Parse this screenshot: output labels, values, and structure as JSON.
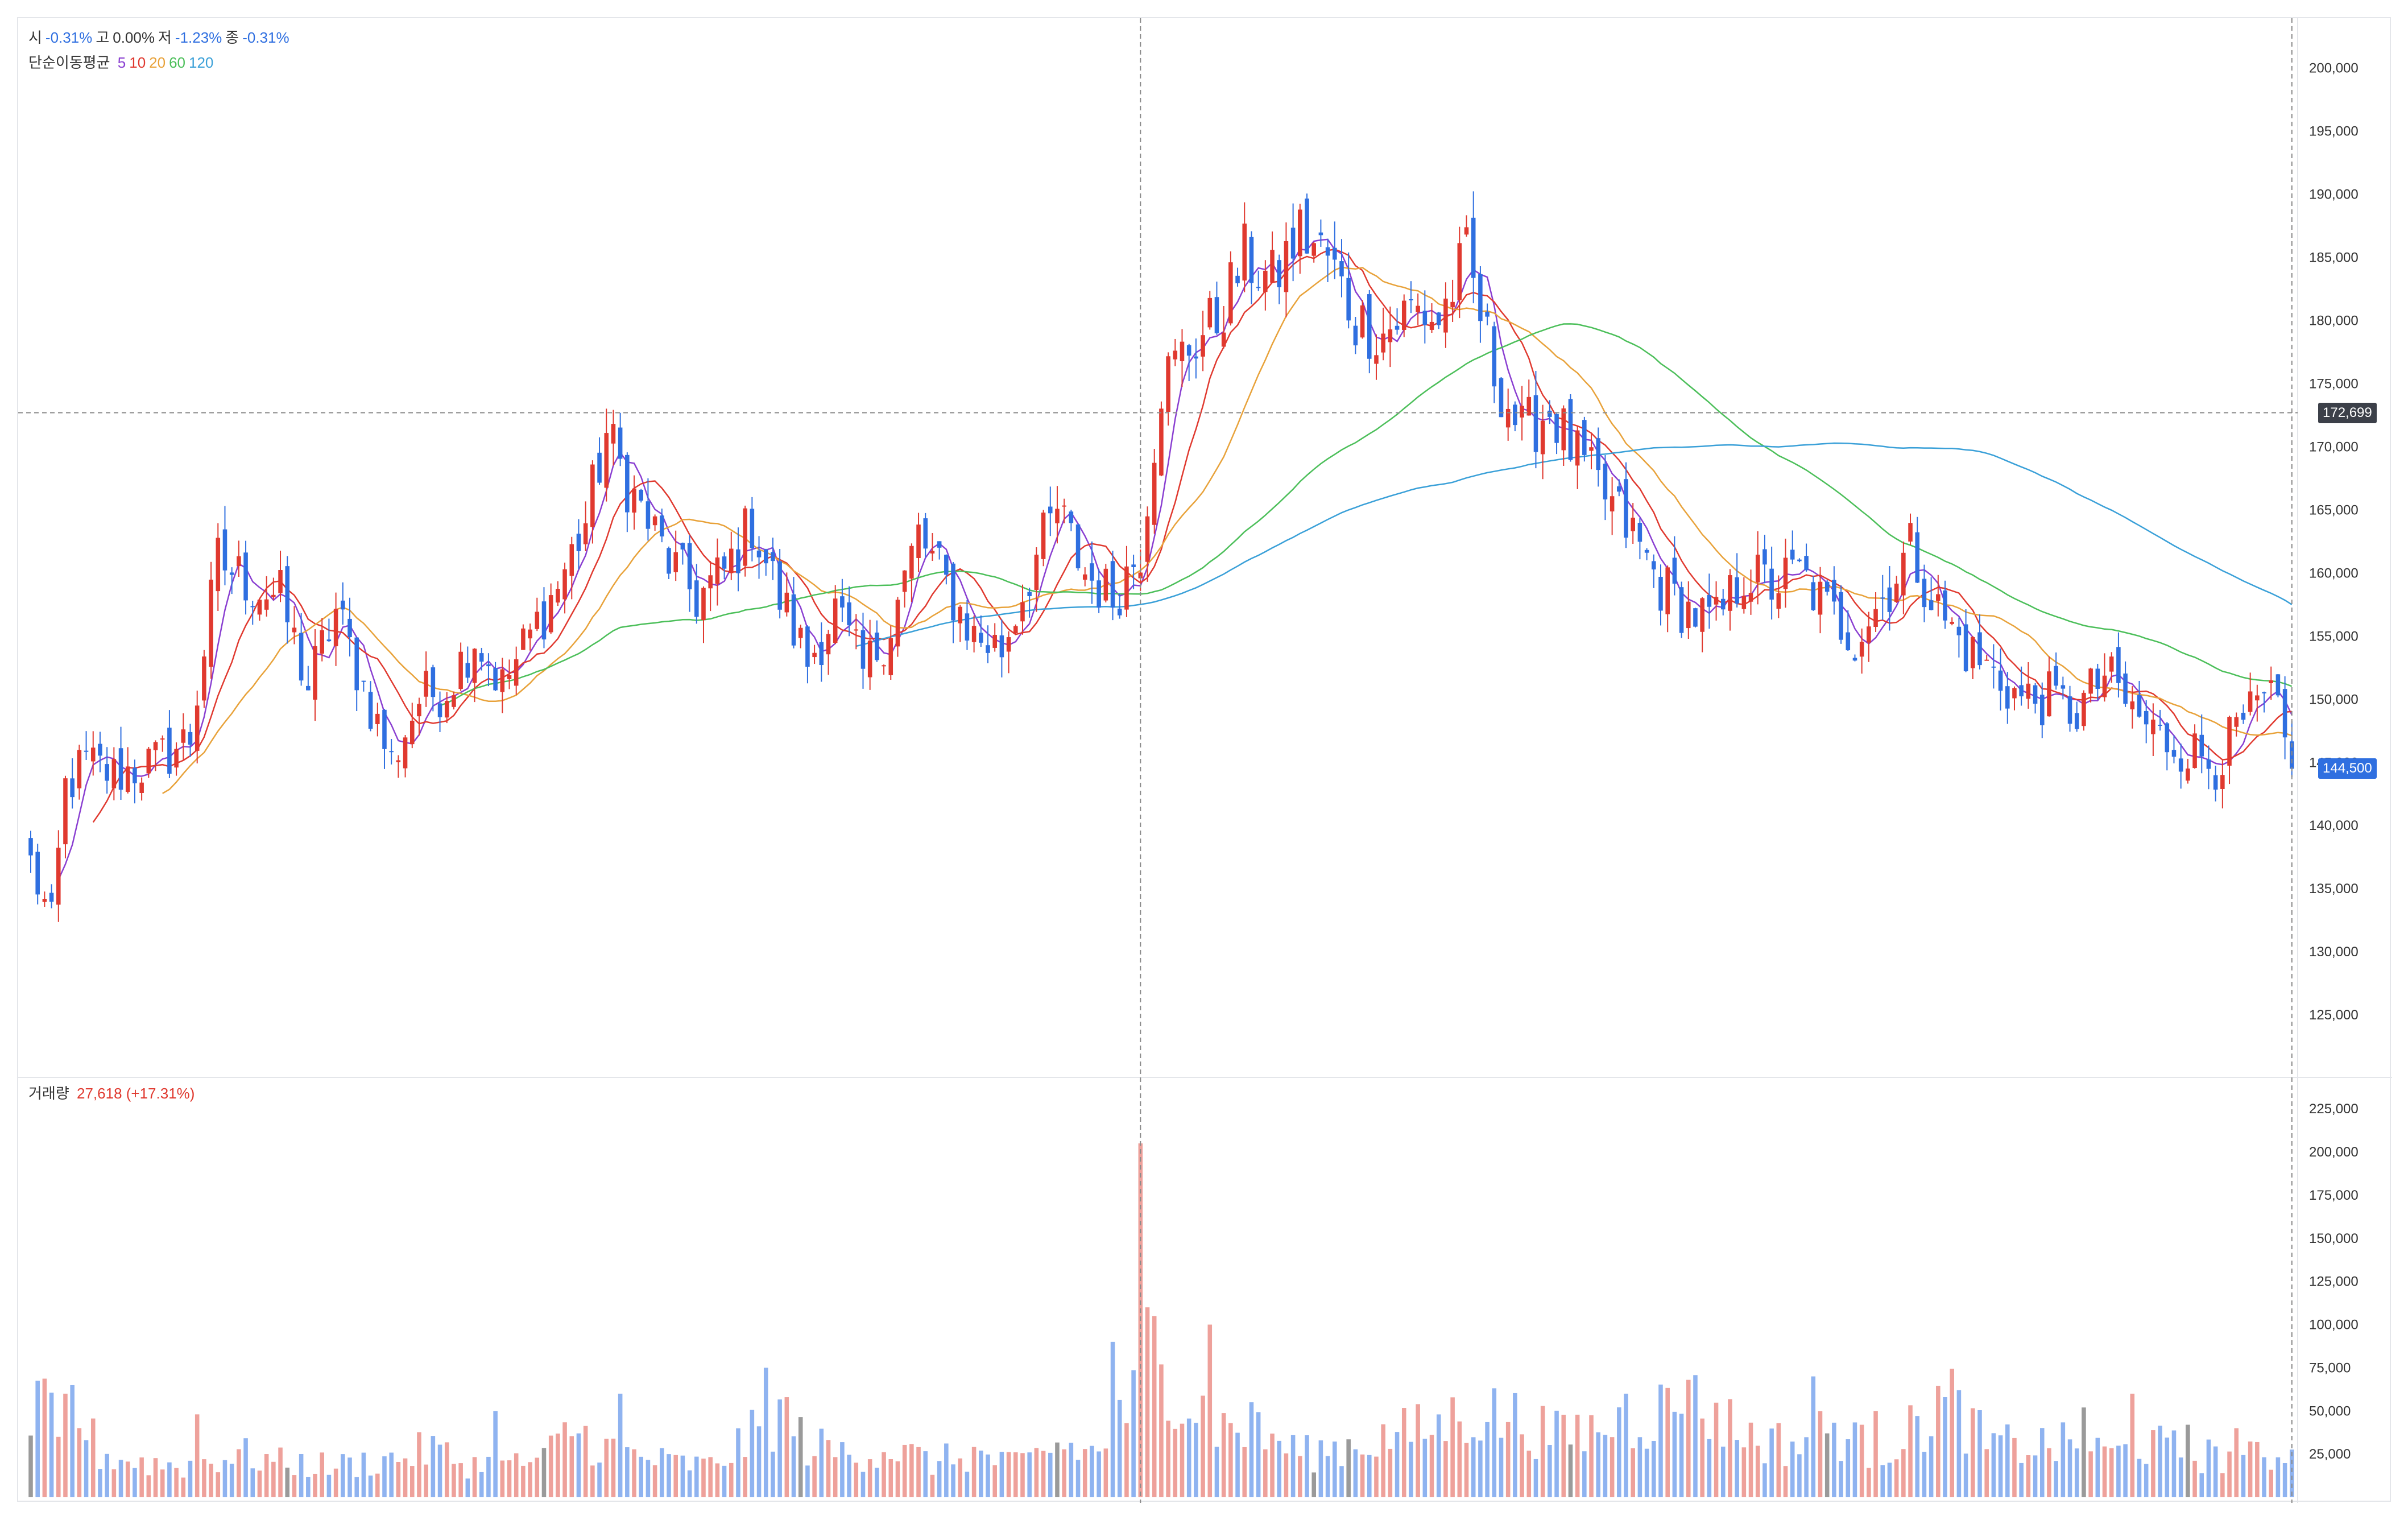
{
  "legend": {
    "ohlc": [
      {
        "label": "시",
        "value": "-0.31%",
        "tone": "neg"
      },
      {
        "label": "고",
        "value": "0.00%",
        "tone": "neu"
      },
      {
        "label": "저",
        "value": "-1.23%",
        "tone": "neg"
      },
      {
        "label": "종",
        "value": "-0.31%",
        "tone": "neg"
      }
    ],
    "ma_title": "단순이동평균",
    "ma_periods": [
      {
        "label": "5",
        "color": "#8a3fd1"
      },
      {
        "label": "10",
        "color": "#e0392f"
      },
      {
        "label": "20",
        "color": "#e8a23a"
      },
      {
        "label": "60",
        "color": "#4cbf5a"
      },
      {
        "label": "120",
        "color": "#3aa0d8"
      }
    ],
    "volume_title": "거래량",
    "volume_value": "27,618 (+17.31%)"
  },
  "crosshair_label": "172,699",
  "last_price_label": "144,500",
  "colors": {
    "up": "#e0392f",
    "down": "#2f6fe0",
    "up_vol": "#eea19b",
    "down_vol": "#8fb3f0",
    "neutral_vol": "#9a9a9a"
  },
  "chart_data": {
    "type": "candlestick",
    "price_ticks": [
      "200,000",
      "195,000",
      "190,000",
      "185,000",
      "180,000",
      "175,000",
      "170,000",
      "165,000",
      "160,000",
      "155,000",
      "150,000",
      "145,000",
      "140,000",
      "135,000",
      "130,000",
      "125,000"
    ],
    "price_tick_values": [
      200000,
      195000,
      190000,
      185000,
      180000,
      175000,
      170000,
      165000,
      160000,
      155000,
      150000,
      145000,
      140000,
      135000,
      130000,
      125000
    ],
    "price_range": [
      120500,
      203500
    ],
    "volume_ticks": [
      "225,000",
      "200,000",
      "175,000",
      "150,000",
      "125,000",
      "100,000",
      "75,000",
      "50,000",
      "25,000"
    ],
    "volume_tick_values": [
      225000,
      200000,
      175000,
      150000,
      125000,
      100000,
      75000,
      50000,
      25000
    ],
    "volume_range": [
      0,
      230000
    ],
    "close_anchors": [
      [
        0,
        137000
      ],
      [
        3,
        132000
      ],
      [
        5,
        143000
      ],
      [
        8,
        145000
      ],
      [
        12,
        144000
      ],
      [
        18,
        145000
      ],
      [
        23,
        147000
      ],
      [
        27,
        161000
      ],
      [
        32,
        159000
      ],
      [
        36,
        158000
      ],
      [
        40,
        151000
      ],
      [
        44,
        157000
      ],
      [
        48,
        151000
      ],
      [
        52,
        145000
      ],
      [
        56,
        150000
      ],
      [
        60,
        151000
      ],
      [
        64,
        155000
      ],
      [
        68,
        151000
      ],
      [
        72,
        155000
      ],
      [
        76,
        159000
      ],
      [
        80,
        164000
      ],
      [
        83,
        171000
      ],
      [
        87,
        166000
      ],
      [
        92,
        161000
      ],
      [
        96,
        158000
      ],
      [
        100,
        160000
      ],
      [
        104,
        164000
      ],
      [
        108,
        158000
      ],
      [
        112,
        153000
      ],
      [
        116,
        157000
      ],
      [
        120,
        152000
      ],
      [
        124,
        156000
      ],
      [
        128,
        163000
      ],
      [
        132,
        159000
      ],
      [
        136,
        155000
      ],
      [
        140,
        154000
      ],
      [
        144,
        160000
      ],
      [
        148,
        165000
      ],
      [
        152,
        160000
      ],
      [
        156,
        158000
      ],
      [
        160,
        162000
      ],
      [
        163,
        175000
      ],
      [
        167,
        178000
      ],
      [
        171,
        180000
      ],
      [
        175,
        185000
      ],
      [
        179,
        183000
      ],
      [
        183,
        187000
      ],
      [
        187,
        185000
      ],
      [
        191,
        180000
      ],
      [
        195,
        179000
      ],
      [
        199,
        181000
      ],
      [
        203,
        180000
      ],
      [
        207,
        185000
      ],
      [
        211,
        176000
      ],
      [
        215,
        171000
      ],
      [
        219,
        173000
      ],
      [
        223,
        169000
      ],
      [
        227,
        166000
      ],
      [
        231,
        163000
      ],
      [
        235,
        159000
      ],
      [
        239,
        157000
      ],
      [
        243,
        156000
      ],
      [
        247,
        160000
      ],
      [
        251,
        159000
      ],
      [
        255,
        160000
      ],
      [
        259,
        157000
      ],
      [
        263,
        155000
      ],
      [
        267,
        158000
      ],
      [
        271,
        162000
      ],
      [
        275,
        157000
      ],
      [
        279,
        154000
      ],
      [
        283,
        152000
      ],
      [
        287,
        150000
      ],
      [
        291,
        150000
      ],
      [
        295,
        149000
      ],
      [
        299,
        152000
      ],
      [
        303,
        149000
      ],
      [
        307,
        147000
      ],
      [
        311,
        146000
      ],
      [
        315,
        145000
      ],
      [
        319,
        148000
      ],
      [
        323,
        150000
      ],
      [
        326,
        144500
      ]
    ],
    "volume_anchors": [
      [
        0,
        45000
      ],
      [
        6,
        55000
      ],
      [
        10,
        25000
      ],
      [
        16,
        20000
      ],
      [
        22,
        18000
      ],
      [
        30,
        25000
      ],
      [
        36,
        20000
      ],
      [
        44,
        18000
      ],
      [
        52,
        22000
      ],
      [
        58,
        28000
      ],
      [
        62,
        20000
      ],
      [
        68,
        18000
      ],
      [
        74,
        22000
      ],
      [
        78,
        40000
      ],
      [
        82,
        30000
      ],
      [
        86,
        25000
      ],
      [
        92,
        20000
      ],
      [
        98,
        18000
      ],
      [
        104,
        35000
      ],
      [
        108,
        50000
      ],
      [
        112,
        30000
      ],
      [
        118,
        25000
      ],
      [
        124,
        28000
      ],
      [
        130,
        20000
      ],
      [
        136,
        25000
      ],
      [
        142,
        18000
      ],
      [
        148,
        30000
      ],
      [
        154,
        25000
      ],
      [
        160,
        60000
      ],
      [
        161,
        110000
      ],
      [
        166,
        60000
      ],
      [
        172,
        40000
      ],
      [
        178,
        35000
      ],
      [
        184,
        25000
      ],
      [
        190,
        30000
      ],
      [
        196,
        35000
      ],
      [
        202,
        40000
      ],
      [
        208,
        50000
      ],
      [
        214,
        45000
      ],
      [
        220,
        35000
      ],
      [
        226,
        40000
      ],
      [
        232,
        45000
      ],
      [
        238,
        55000
      ],
      [
        242,
        50000
      ],
      [
        248,
        35000
      ],
      [
        254,
        30000
      ],
      [
        260,
        40000
      ],
      [
        266,
        25000
      ],
      [
        272,
        40000
      ],
      [
        276,
        60000
      ],
      [
        282,
        30000
      ],
      [
        288,
        30000
      ],
      [
        294,
        30000
      ],
      [
        300,
        25000
      ],
      [
        306,
        30000
      ],
      [
        312,
        25000
      ],
      [
        318,
        22000
      ],
      [
        326,
        25000
      ]
    ],
    "volume_spikes": [
      [
        4,
        35000
      ],
      [
        5,
        60000
      ],
      [
        24,
        48000
      ],
      [
        67,
        50000
      ],
      [
        85,
        60000
      ],
      [
        106,
        75000
      ],
      [
        156,
        90000
      ],
      [
        160,
        205000
      ],
      [
        161,
        110000
      ],
      [
        162,
        105000
      ],
      [
        170,
        100000
      ],
      [
        176,
        55000
      ],
      [
        230,
        60000
      ],
      [
        239,
        68000
      ],
      [
        257,
        70000
      ],
      [
        266,
        50000
      ],
      [
        276,
        58000
      ],
      [
        296,
        52000
      ],
      [
        303,
        60000
      ],
      [
        311,
        42000
      ],
      [
        318,
        40000
      ]
    ],
    "volume_labels": [
      {
        "index": 326,
        "value": 27618,
        "text": "27,618 (+17.31%)"
      }
    ],
    "candle_count": 327,
    "crosshair": {
      "index": 160,
      "price": 172699
    },
    "last_close": 144500,
    "moving_averages": [
      5,
      10,
      20,
      60,
      120
    ]
  }
}
